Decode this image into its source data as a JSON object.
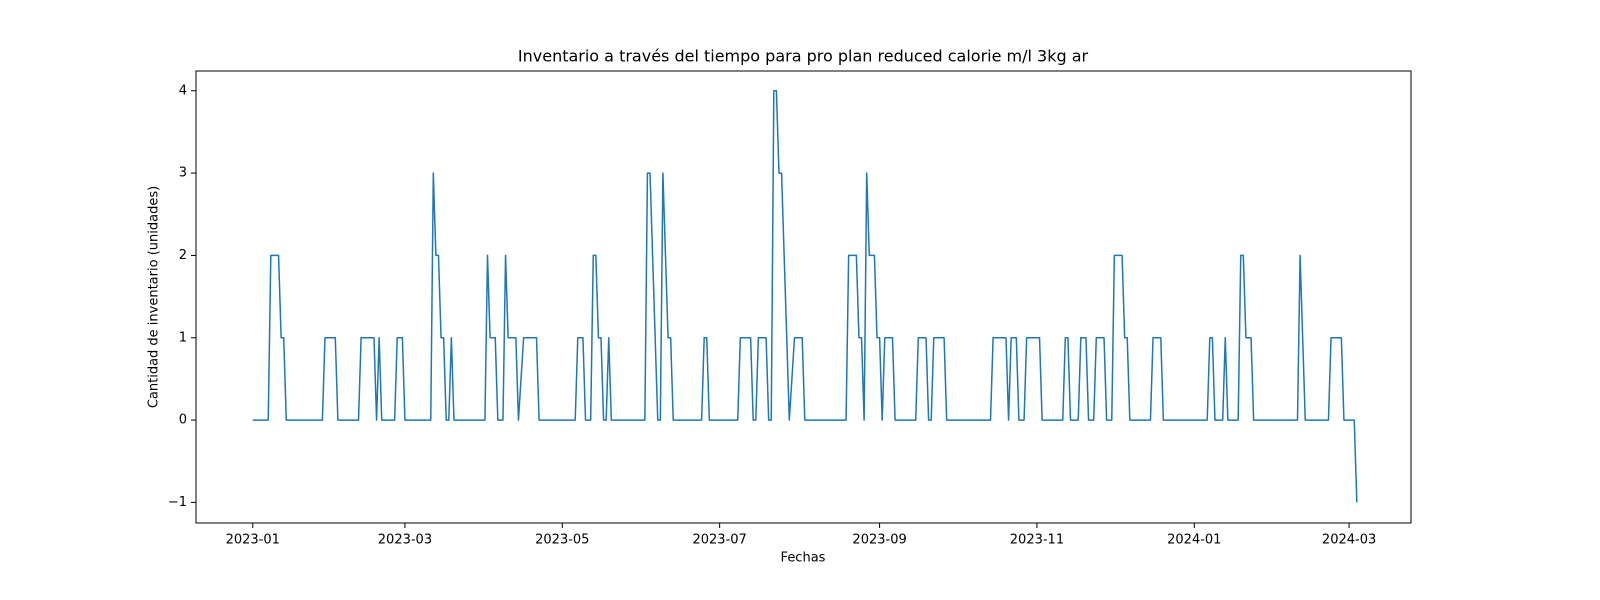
{
  "chart_data": {
    "type": "line",
    "title": "Inventario a través del tiempo para pro plan reduced calorie m/l 3kg ar",
    "x_label": "Fechas",
    "y_label": "Cantidad de inventario (unidades)",
    "color": "#1f77b4",
    "x": [
      "2023-01-01",
      "2023-01-07",
      "2023-01-08",
      "2023-01-11",
      "2023-01-12",
      "2023-01-13",
      "2023-01-14",
      "2023-01-28",
      "2023-01-29",
      "2023-02-02",
      "2023-02-03",
      "2023-02-11",
      "2023-02-12",
      "2023-02-17",
      "2023-02-18",
      "2023-02-19",
      "2023-02-20",
      "2023-02-25",
      "2023-02-26",
      "2023-02-28",
      "2023-03-01",
      "2023-03-11",
      "2023-03-12",
      "2023-03-13",
      "2023-03-14",
      "2023-03-15",
      "2023-03-16",
      "2023-03-17",
      "2023-03-18",
      "2023-03-19",
      "2023-03-20",
      "2023-04-01",
      "2023-04-02",
      "2023-04-03",
      "2023-04-05",
      "2023-04-06",
      "2023-04-08",
      "2023-04-09",
      "2023-04-10",
      "2023-04-13",
      "2023-04-14",
      "2023-04-16",
      "2023-04-21",
      "2023-04-22",
      "2023-05-06",
      "2023-05-07",
      "2023-05-09",
      "2023-05-10",
      "2023-05-12",
      "2023-05-13",
      "2023-05-14",
      "2023-05-15",
      "2023-05-16",
      "2023-05-17",
      "2023-05-18",
      "2023-05-19",
      "2023-05-20",
      "2023-06-02",
      "2023-06-03",
      "2023-06-04",
      "2023-06-07",
      "2023-06-08",
      "2023-06-09",
      "2023-06-11",
      "2023-06-12",
      "2023-06-13",
      "2023-06-24",
      "2023-06-25",
      "2023-06-26",
      "2023-06-27",
      "2023-07-08",
      "2023-07-09",
      "2023-07-13",
      "2023-07-14",
      "2023-07-15",
      "2023-07-16",
      "2023-07-19",
      "2023-07-20",
      "2023-07-21",
      "2023-07-22",
      "2023-07-23",
      "2023-07-24",
      "2023-07-25",
      "2023-07-28",
      "2023-07-30",
      "2023-08-02",
      "2023-08-03",
      "2023-08-19",
      "2023-08-20",
      "2023-08-23",
      "2023-08-24",
      "2023-08-25",
      "2023-08-26",
      "2023-08-27",
      "2023-08-28",
      "2023-08-30",
      "2023-08-31",
      "2023-09-01",
      "2023-09-02",
      "2023-09-03",
      "2023-09-06",
      "2023-09-07",
      "2023-09-15",
      "2023-09-16",
      "2023-09-19",
      "2023-09-20",
      "2023-09-21",
      "2023-09-22",
      "2023-09-26",
      "2023-09-27",
      "2023-10-14",
      "2023-10-15",
      "2023-10-20",
      "2023-10-21",
      "2023-10-22",
      "2023-10-24",
      "2023-10-25",
      "2023-10-27",
      "2023-10-28",
      "2023-11-02",
      "2023-11-03",
      "2023-11-11",
      "2023-11-12",
      "2023-11-13",
      "2023-11-14",
      "2023-11-17",
      "2023-11-18",
      "2023-11-20",
      "2023-11-21",
      "2023-11-23",
      "2023-11-24",
      "2023-11-27",
      "2023-11-28",
      "2023-11-30",
      "2023-12-01",
      "2023-12-04",
      "2023-12-05",
      "2023-12-06",
      "2023-12-07",
      "2023-12-15",
      "2023-12-16",
      "2023-12-19",
      "2023-12-20",
      "2024-01-06",
      "2024-01-07",
      "2024-01-08",
      "2024-01-09",
      "2024-01-12",
      "2024-01-13",
      "2024-01-14",
      "2024-01-18",
      "2024-01-19",
      "2024-01-20",
      "2024-01-21",
      "2024-01-23",
      "2024-01-24",
      "2024-02-10",
      "2024-02-11",
      "2024-02-12",
      "2024-02-13",
      "2024-02-22",
      "2024-02-23",
      "2024-02-27",
      "2024-02-28",
      "2024-03-03",
      "2024-03-04"
    ],
    "values": [
      0,
      0,
      2,
      2,
      1,
      1,
      0,
      0,
      1,
      1,
      0,
      0,
      1,
      1,
      0,
      1,
      0,
      0,
      1,
      1,
      0,
      0,
      3,
      2,
      2,
      1,
      1,
      0,
      0,
      1,
      0,
      0,
      2,
      1,
      1,
      0,
      0,
      2,
      1,
      1,
      0,
      1,
      1,
      0,
      0,
      1,
      1,
      0,
      0,
      2,
      2,
      1,
      1,
      0,
      0,
      1,
      0,
      0,
      3,
      3,
      0,
      0,
      3,
      1,
      1,
      0,
      0,
      1,
      1,
      0,
      0,
      1,
      1,
      0,
      0,
      1,
      1,
      0,
      0,
      4,
      4,
      3,
      3,
      0,
      1,
      1,
      0,
      0,
      2,
      2,
      1,
      1,
      0,
      3,
      2,
      2,
      1,
      1,
      0,
      1,
      1,
      0,
      0,
      1,
      1,
      0,
      0,
      1,
      1,
      0,
      0,
      1,
      1,
      0,
      1,
      1,
      0,
      0,
      1,
      1,
      0,
      0,
      1,
      1,
      0,
      0,
      1,
      1,
      0,
      0,
      1,
      1,
      0,
      0,
      2,
      2,
      1,
      1,
      0,
      0,
      1,
      1,
      0,
      0,
      1,
      1,
      0,
      0,
      1,
      0,
      0,
      2,
      2,
      1,
      1,
      0,
      0,
      2,
      1,
      0,
      0,
      1,
      1,
      0,
      0,
      -1
    ],
    "xlim": [
      "2022-12-10",
      "2024-03-25"
    ],
    "xticks": [
      {
        "value": "2023-01-01",
        "label": "2023-01"
      },
      {
        "value": "2023-03-01",
        "label": "2023-03"
      },
      {
        "value": "2023-05-01",
        "label": "2023-05"
      },
      {
        "value": "2023-07-01",
        "label": "2023-07"
      },
      {
        "value": "2023-09-01",
        "label": "2023-09"
      },
      {
        "value": "2023-11-01",
        "label": "2023-11"
      },
      {
        "value": "2024-01-01",
        "label": "2024-01"
      },
      {
        "value": "2024-03-01",
        "label": "2024-03"
      }
    ],
    "ylim": [
      -1.25,
      4.24
    ],
    "yticks": [
      {
        "value": -1,
        "label": "−1"
      },
      0,
      1,
      2,
      3,
      4
    ],
    "grid": false
  }
}
